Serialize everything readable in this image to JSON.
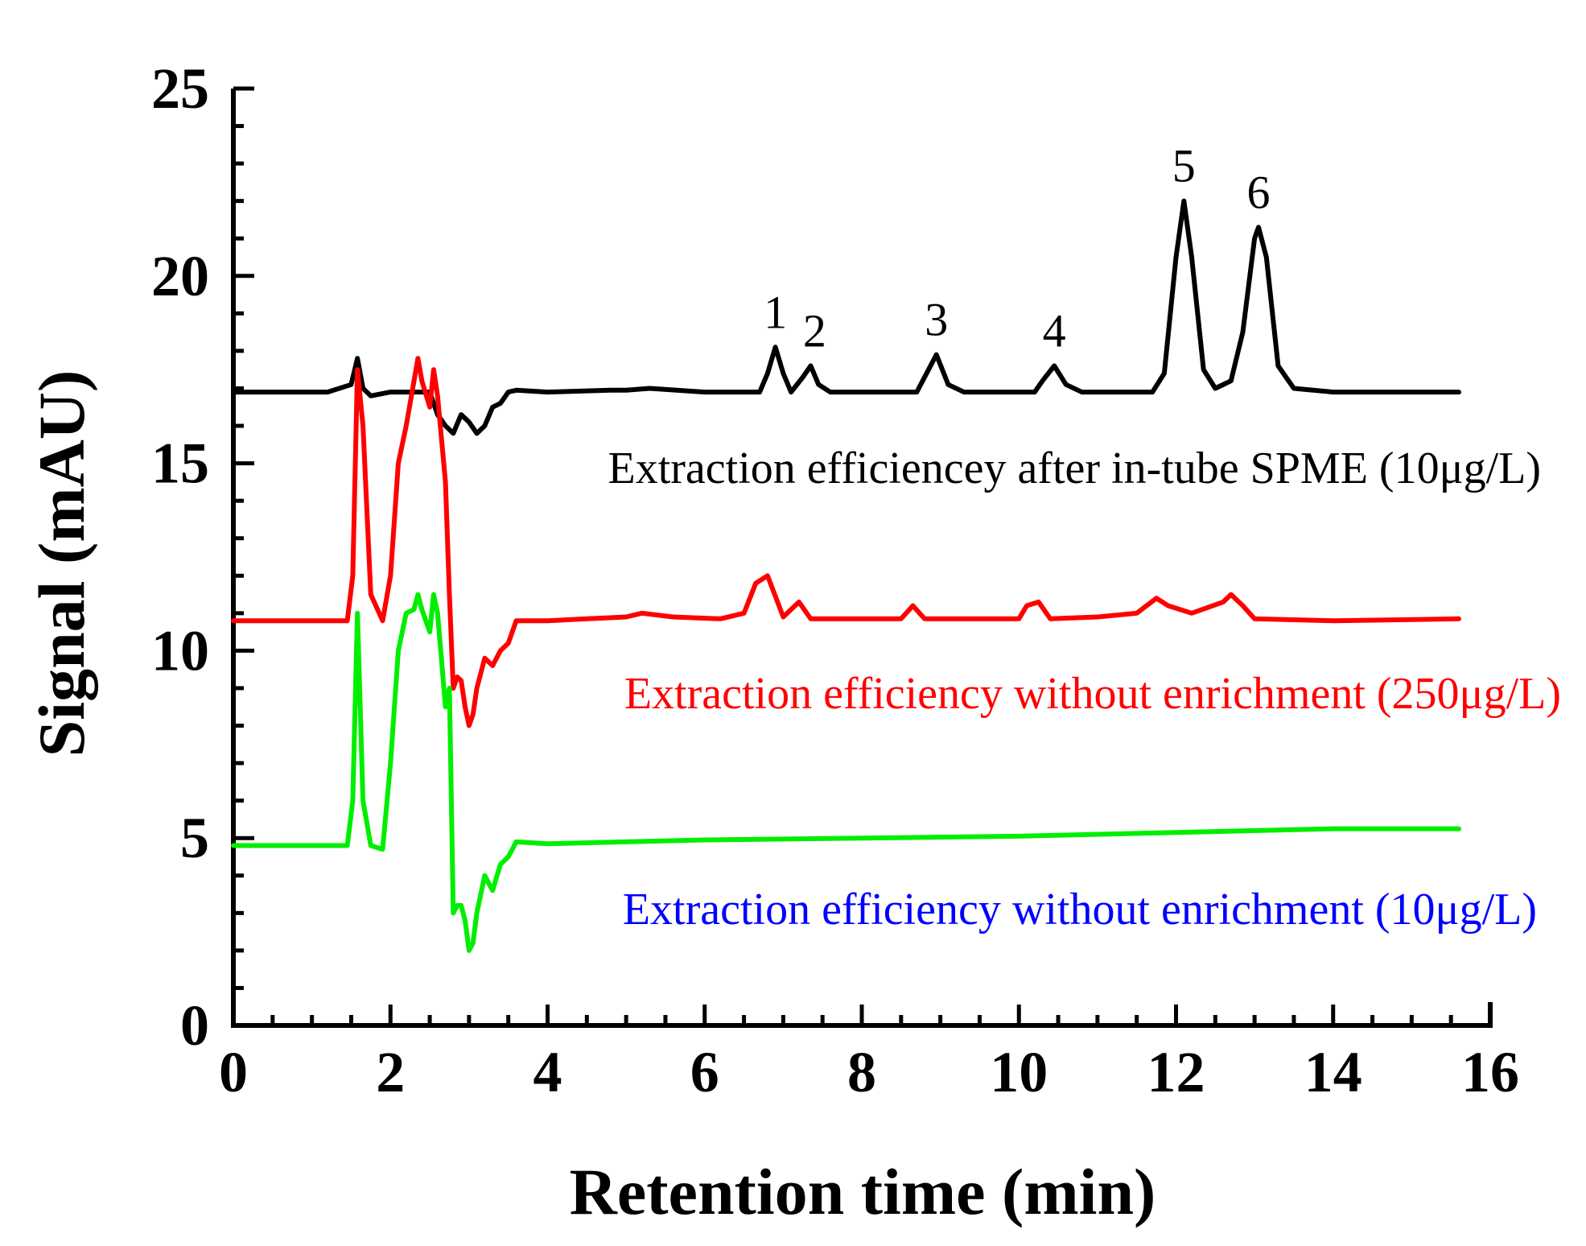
{
  "chart_data": {
    "type": "line",
    "title": "",
    "xlabel": "Retention time (min)",
    "ylabel": "Signal (mAU)",
    "xlim": [
      0,
      16
    ],
    "ylim": [
      0,
      25
    ],
    "xticks": [
      "0",
      "2",
      "4",
      "6",
      "8",
      "10",
      "12",
      "14",
      "16"
    ],
    "yticks": [
      "0",
      "5",
      "10",
      "15",
      "20",
      "25"
    ],
    "grid": false,
    "series": [
      {
        "name": "Extraction efficiencey after in-tube SPME (10μg/L)",
        "color": "#000000",
        "label_color": "#000000",
        "x": [
          0,
          1.2,
          1.5,
          1.58,
          1.65,
          1.75,
          2.0,
          2.5,
          2.6,
          2.7,
          2.8,
          2.9,
          3.0,
          3.1,
          3.2,
          3.3,
          3.4,
          3.5,
          3.6,
          4.0,
          4.8,
          5.0,
          5.3,
          6.0,
          6.7,
          6.8,
          6.9,
          7.0,
          7.1,
          7.25,
          7.35,
          7.45,
          7.6,
          8.7,
          8.8,
          8.95,
          9.1,
          9.3,
          10.2,
          10.3,
          10.45,
          10.6,
          10.8,
          11.7,
          11.85,
          12.0,
          12.1,
          12.2,
          12.35,
          12.5,
          12.7,
          12.85,
          13.0,
          13.05,
          13.15,
          13.3,
          13.5,
          14.0,
          15.6
        ],
        "y": [
          16.9,
          16.9,
          17.1,
          17.8,
          17.0,
          16.8,
          16.9,
          16.9,
          16.3,
          16.0,
          15.8,
          16.3,
          16.1,
          15.8,
          16.0,
          16.5,
          16.6,
          16.9,
          16.95,
          16.9,
          16.95,
          16.95,
          17.0,
          16.9,
          16.9,
          17.4,
          18.1,
          17.4,
          16.9,
          17.3,
          17.6,
          17.1,
          16.9,
          16.9,
          17.3,
          17.9,
          17.1,
          16.9,
          16.9,
          17.2,
          17.6,
          17.1,
          16.9,
          16.9,
          17.4,
          20.5,
          22.0,
          20.5,
          17.5,
          17.0,
          17.2,
          18.5,
          21.0,
          21.3,
          20.5,
          17.6,
          17.0,
          16.9,
          16.9
        ]
      },
      {
        "name": "Extraction efficiency without enrichment (250μg/L)",
        "color": "#ff0000",
        "label_color": "#ff0000",
        "x": [
          0,
          1.45,
          1.52,
          1.58,
          1.65,
          1.75,
          1.9,
          2.0,
          2.1,
          2.2,
          2.3,
          2.35,
          2.4,
          2.5,
          2.55,
          2.6,
          2.7,
          2.75,
          2.8,
          2.85,
          2.9,
          2.95,
          3.0,
          3.05,
          3.1,
          3.2,
          3.3,
          3.4,
          3.5,
          3.6,
          4.0,
          4.5,
          5.0,
          5.2,
          5.6,
          6.2,
          6.5,
          6.65,
          6.8,
          7.0,
          7.1,
          7.2,
          7.35,
          8.5,
          8.65,
          8.8,
          10.0,
          10.1,
          10.25,
          10.4,
          11.0,
          11.5,
          11.75,
          11.9,
          12.2,
          12.6,
          12.7,
          12.85,
          13.0,
          14.0,
          15.6
        ],
        "y": [
          10.8,
          10.8,
          12.0,
          17.5,
          16.0,
          11.5,
          10.8,
          12.0,
          15.0,
          16.0,
          17.2,
          17.8,
          17.2,
          16.5,
          17.5,
          16.8,
          14.5,
          11.5,
          9.0,
          9.3,
          9.2,
          8.5,
          8.0,
          8.3,
          9.0,
          9.8,
          9.6,
          10.0,
          10.2,
          10.8,
          10.8,
          10.85,
          10.9,
          11.0,
          10.9,
          10.85,
          11.0,
          11.8,
          12.0,
          10.9,
          11.1,
          11.3,
          10.85,
          10.85,
          11.2,
          10.85,
          10.85,
          11.2,
          11.3,
          10.85,
          10.9,
          11.0,
          11.4,
          11.2,
          11.0,
          11.3,
          11.5,
          11.2,
          10.85,
          10.8,
          10.85
        ]
      },
      {
        "name": "Extraction efficiency without enrichment (10μg/L)",
        "color": "#00ee00",
        "label_color": "#0000ff",
        "x": [
          0,
          1.45,
          1.52,
          1.58,
          1.65,
          1.75,
          1.9,
          2.0,
          2.1,
          2.2,
          2.3,
          2.35,
          2.4,
          2.5,
          2.55,
          2.6,
          2.7,
          2.75,
          2.8,
          2.85,
          2.9,
          2.95,
          3.0,
          3.05,
          3.1,
          3.2,
          3.3,
          3.4,
          3.5,
          3.6,
          4.0,
          5.0,
          6.0,
          8.0,
          10.0,
          12.0,
          14.0,
          15.6
        ],
        "y": [
          4.8,
          4.8,
          6.0,
          11.0,
          6.0,
          4.8,
          4.7,
          7.0,
          10.0,
          11.0,
          11.1,
          11.5,
          11.1,
          10.5,
          11.5,
          11.0,
          8.5,
          9.0,
          3.0,
          3.2,
          3.2,
          2.8,
          2.0,
          2.2,
          3.0,
          4.0,
          3.6,
          4.3,
          4.5,
          4.9,
          4.85,
          4.9,
          4.95,
          5.0,
          5.05,
          5.15,
          5.25,
          5.25
        ]
      }
    ],
    "peak_labels": [
      "1",
      "2",
      "3",
      "4",
      "5",
      "6"
    ],
    "peak_positions": [
      [
        6.9,
        18.1
      ],
      [
        7.4,
        17.6
      ],
      [
        8.95,
        17.9
      ],
      [
        10.45,
        17.6
      ],
      [
        12.1,
        22.0
      ],
      [
        13.05,
        21.3
      ]
    ]
  }
}
